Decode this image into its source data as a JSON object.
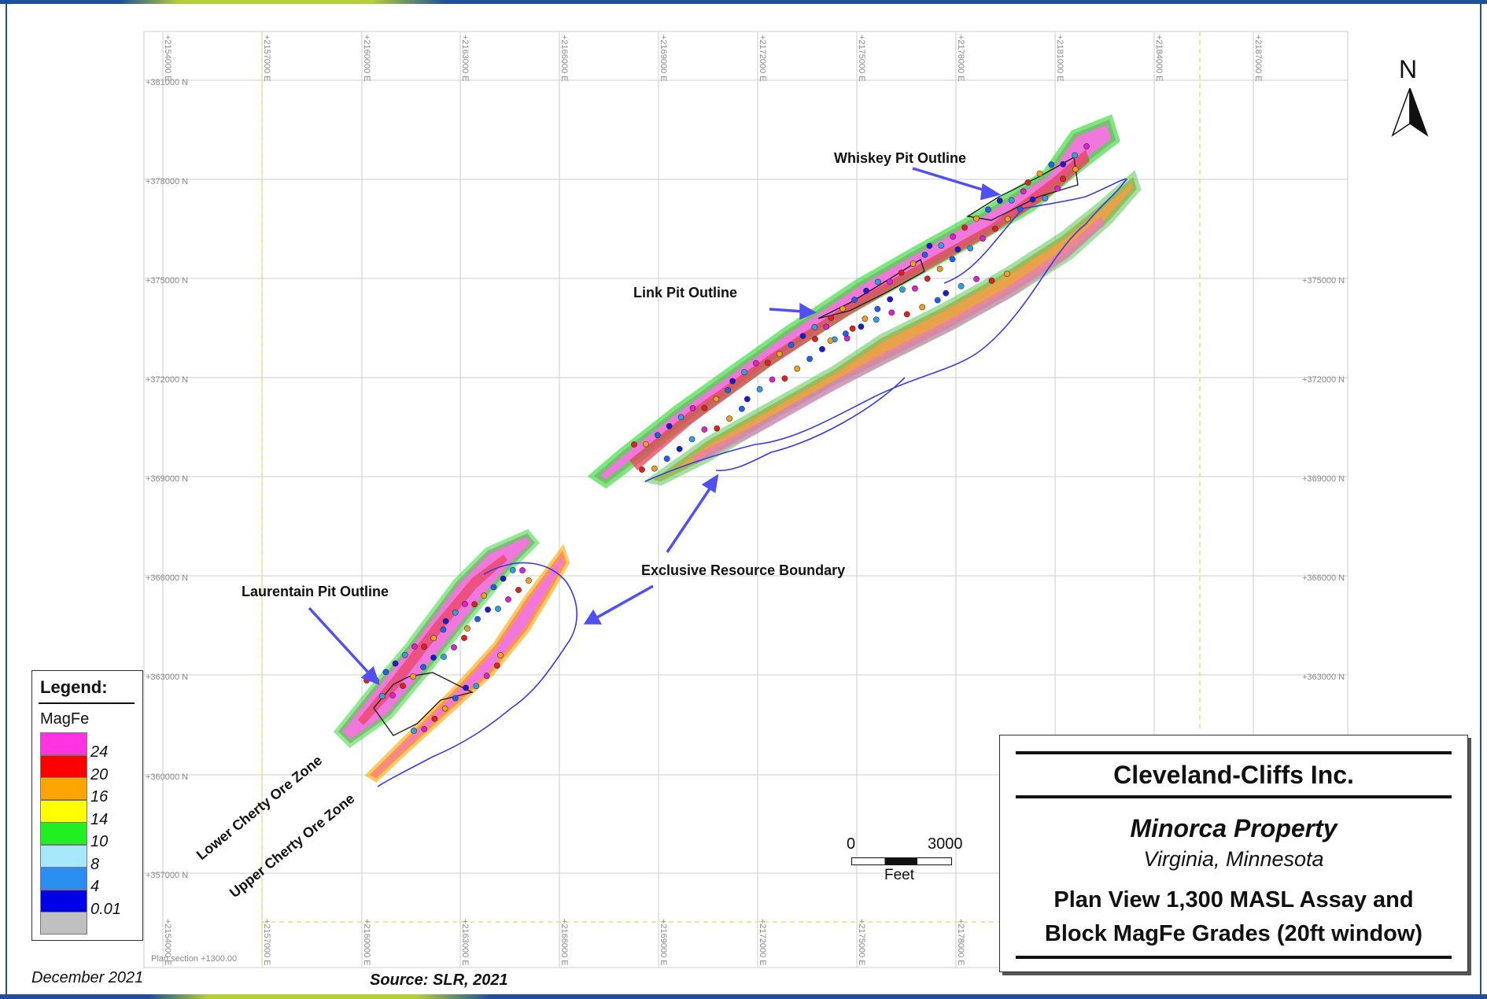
{
  "map": {
    "grid_easting_labels": [
      "+2154000 E",
      "+2157000 E",
      "+2160000 E",
      "+2163000 E",
      "+2166000 E",
      "+2169000 E",
      "+2172000 E",
      "+2175000 E",
      "+2178000 E",
      "+2181000 E",
      "+2184000 E",
      "+2187000 E"
    ],
    "grid_northing_labels": [
      "+381000 N",
      "+378000 N",
      "+375000 N",
      "+372000 N",
      "+369000 N",
      "+366000 N",
      "+363000 N",
      "+360000 N",
      "+357000 N"
    ],
    "plan_section_note": "Plan section +1300.00",
    "callouts": {
      "whiskey": "Whiskey Pit Outline",
      "link": "Link Pit Outline",
      "exclusive": "Exclusive Resource Boundary",
      "laurentain": "Laurentain Pit Outline"
    },
    "zones": {
      "lower": "Lower Cherty Ore Zone",
      "upper": "Upper Cherty Ore Zone"
    },
    "north_label": "N",
    "scale": {
      "start": "0",
      "end": "3000",
      "unit": "Feet"
    }
  },
  "legend": {
    "title": "Legend:",
    "variable": "MagFe",
    "entries": [
      {
        "label": "24",
        "color": "#ff33e0"
      },
      {
        "label": "20",
        "color": "#ff0000"
      },
      {
        "label": "16",
        "color": "#ffa500"
      },
      {
        "label": "14",
        "color": "#ffff00"
      },
      {
        "label": "10",
        "color": "#22ee22"
      },
      {
        "label": "8",
        "color": "#a8e8ff"
      },
      {
        "label": "4",
        "color": "#2a8ef0"
      },
      {
        "label": "0.01",
        "color": "#0000e6"
      },
      {
        "label": "",
        "color": "#c0c0c0"
      }
    ]
  },
  "titlebox": {
    "company": "Cleveland-Cliffs Inc.",
    "property": "Minorca Property",
    "location": "Virginia, Minnesota",
    "title_line1": "Plan View 1,300 MASL Assay and",
    "title_line2": "Block MagFe Grades (20ft window)"
  },
  "footer": {
    "date": "December 2021",
    "source": "Source: SLR, 2021"
  },
  "colors": {
    "accent_blue": "#1f4e9a",
    "accent_green": "#b5cf3a",
    "arrow_blue": "#5050f0",
    "outline_blue": "#3b3bd6"
  }
}
